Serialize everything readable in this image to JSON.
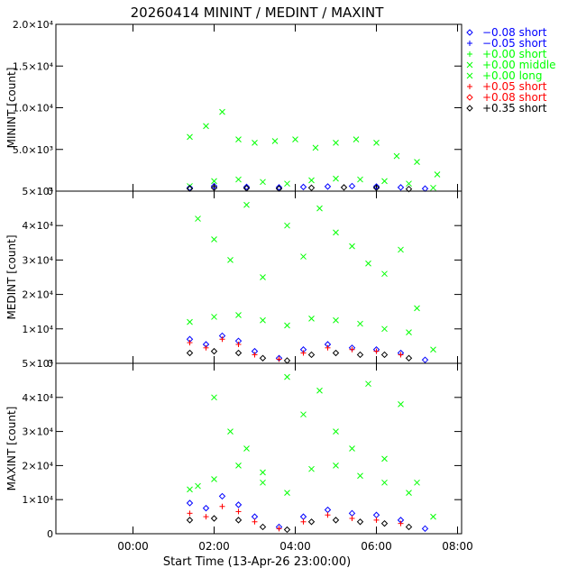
{
  "chart_data": {
    "type": "scatter",
    "title": "20260414 MININT / MEDINT / MAXINT",
    "xlabel": "Start Time (13-Apr-26 23:00:00)",
    "x_unit": "hours since 13-Apr-26 23:00:00",
    "xlim": [
      -0.9,
      9.1
    ],
    "x_ticks": [
      {
        "value": 1,
        "label": "00:00"
      },
      {
        "value": 3,
        "label": "02:00"
      },
      {
        "value": 5,
        "label": "04:00"
      },
      {
        "value": 7,
        "label": "06:00"
      },
      {
        "value": 9,
        "label": "08:00"
      }
    ],
    "legend_position": "right",
    "legend": [
      {
        "label": "−0.08 short",
        "marker": "diamond",
        "color": "#0000ff"
      },
      {
        "label": "−0.05 short",
        "marker": "plus",
        "color": "#0000ff"
      },
      {
        "label": "+0.00 short",
        "marker": "plus",
        "color": "#00ff00"
      },
      {
        "label": "+0.00 middle",
        "marker": "x",
        "color": "#00ff00"
      },
      {
        "label": "+0.00 long",
        "marker": "x",
        "color": "#00ff00"
      },
      {
        "label": "+0.05 short",
        "marker": "plus",
        "color": "#ff0000"
      },
      {
        "label": "+0.08 short",
        "marker": "diamond",
        "color": "#ff0000"
      },
      {
        "label": "+0.35 short",
        "marker": "diamond",
        "color": "#000000"
      }
    ],
    "panels": [
      {
        "ylabel": "MININT [count]",
        "ylim": [
          0,
          20000
        ],
        "y_ticks": [
          {
            "value": 0,
            "label": "0"
          },
          {
            "value": 5000,
            "label": "5.0×10³"
          },
          {
            "value": 10000,
            "label": "1.0×10⁴"
          },
          {
            "value": 15000,
            "label": "1.5×10⁴"
          },
          {
            "value": 20000,
            "label": "2.0×10⁴"
          }
        ],
        "series": [
          {
            "name": "−0.08 short",
            "x": [
              2.4,
              3.0,
              3.8,
              4.6,
              5.2,
              5.8,
              6.4,
              7.0,
              7.6,
              8.2
            ],
            "y": [
              400,
              600,
              500,
              450,
              500,
              550,
              600,
              550,
              450,
              300
            ]
          },
          {
            "name": "+0.00 middle",
            "x": [
              2.4,
              2.8,
              3.2,
              3.6,
              4.0,
              4.5,
              5.0,
              5.5,
              6.0,
              6.5,
              7.0,
              7.5,
              8.0,
              8.5
            ],
            "y": [
              6500,
              7800,
              9500,
              6200,
              5800,
              6000,
              6200,
              5200,
              5800,
              6200,
              5800,
              4200,
              3500,
              2000
            ]
          },
          {
            "name": "+0.00 long",
            "x": [
              2.4,
              3.0,
              3.6,
              4.2,
              4.8,
              5.4,
              6.0,
              6.6,
              7.2,
              7.8,
              8.4
            ],
            "y": [
              600,
              1200,
              1400,
              1100,
              900,
              1300,
              1500,
              1400,
              1200,
              900,
              400
            ]
          },
          {
            "name": "+0.35 short",
            "x": [
              2.4,
              3.0,
              3.8,
              4.6,
              5.4,
              6.2,
              7.0,
              7.8
            ],
            "y": [
              300,
              400,
              350,
              300,
              400,
              450,
              400,
              250
            ]
          }
        ]
      },
      {
        "ylabel": "MEDINT [count]",
        "ylim": [
          0,
          50000
        ],
        "y_ticks": [
          {
            "value": 0,
            "label": "0"
          },
          {
            "value": 10000,
            "label": "1×10⁴"
          },
          {
            "value": 20000,
            "label": "2×10⁴"
          },
          {
            "value": 30000,
            "label": "3×10⁴"
          },
          {
            "value": 40000,
            "label": "4×10⁴"
          },
          {
            "value": 50000,
            "label": "5×10⁴"
          }
        ],
        "series": [
          {
            "name": "−0.08 short",
            "x": [
              2.4,
              2.8,
              3.2,
              3.6,
              4.0,
              4.6,
              5.2,
              5.8,
              6.4,
              7.0,
              7.6,
              8.2
            ],
            "y": [
              7000,
              5500,
              8000,
              6500,
              3500,
              1500,
              4000,
              5500,
              4500,
              4000,
              3000,
              1000
            ]
          },
          {
            "name": "+0.00 middle",
            "x": [
              2.6,
              3.0,
              3.4,
              3.8,
              4.2,
              4.8,
              5.2,
              5.6,
              6.0,
              6.4,
              6.8,
              7.2,
              7.6,
              8.0
            ],
            "y": [
              42000,
              36000,
              30000,
              46000,
              25000,
              40000,
              31000,
              45000,
              38000,
              34000,
              29000,
              26000,
              33000,
              16000
            ]
          },
          {
            "name": "+0.00 long",
            "x": [
              2.4,
              3.0,
              3.6,
              4.2,
              4.8,
              5.4,
              6.0,
              6.6,
              7.2,
              7.8,
              8.4
            ],
            "y": [
              12000,
              13500,
              14000,
              12500,
              11000,
              13000,
              12500,
              11500,
              10000,
              9000,
              4000
            ]
          },
          {
            "name": "+0.05 short",
            "x": [
              2.4,
              2.8,
              3.2,
              3.6,
              4.0,
              4.6,
              5.2,
              5.8,
              6.4,
              7.0,
              7.6
            ],
            "y": [
              6000,
              4500,
              7000,
              5500,
              2500,
              1200,
              3000,
              4500,
              4000,
              3500,
              2500
            ]
          },
          {
            "name": "+0.35 short",
            "x": [
              2.4,
              3.0,
              3.6,
              4.2,
              4.8,
              5.4,
              6.0,
              6.6,
              7.2,
              7.8
            ],
            "y": [
              3000,
              3500,
              3000,
              1500,
              800,
              2500,
              3000,
              2500,
              2500,
              1500
            ]
          }
        ]
      },
      {
        "ylabel": "MAXINT [count]",
        "ylim": [
          0,
          50000
        ],
        "y_ticks": [
          {
            "value": 0,
            "label": "0"
          },
          {
            "value": 10000,
            "label": "1×10⁴"
          },
          {
            "value": 20000,
            "label": "2×10⁴"
          },
          {
            "value": 30000,
            "label": "3×10⁴"
          },
          {
            "value": 40000,
            "label": "4×10⁴"
          },
          {
            "value": 50000,
            "label": "5×10⁴"
          }
        ],
        "series": [
          {
            "name": "−0.08 short",
            "x": [
              2.4,
              2.8,
              3.2,
              3.6,
              4.0,
              4.6,
              5.2,
              5.8,
              6.4,
              7.0,
              7.6,
              8.2
            ],
            "y": [
              9000,
              7500,
              11000,
              8500,
              5000,
              2000,
              5000,
              7000,
              6000,
              5500,
              4000,
              1500
            ]
          },
          {
            "name": "+0.00 middle",
            "x": [
              2.6,
              3.0,
              3.4,
              3.8,
              4.2,
              4.8,
              5.2,
              5.6,
              6.0,
              6.4,
              6.8,
              7.2,
              7.6,
              8.0
            ],
            "y": [
              14000,
              40000,
              30000,
              25000,
              18000,
              46000,
              35000,
              42000,
              30000,
              25000,
              44000,
              22000,
              38000,
              15000
            ]
          },
          {
            "name": "+0.00 long",
            "x": [
              2.4,
              3.0,
              3.6,
              4.2,
              4.8,
              5.4,
              6.0,
              6.6,
              7.2,
              7.8,
              8.4
            ],
            "y": [
              13000,
              16000,
              20000,
              15000,
              12000,
              19000,
              20000,
              17000,
              15000,
              12000,
              5000
            ]
          },
          {
            "name": "+0.05 short",
            "x": [
              2.4,
              2.8,
              3.2,
              3.6,
              4.0,
              4.6,
              5.2,
              5.8,
              6.4,
              7.0,
              7.6
            ],
            "y": [
              6000,
              5000,
              8000,
              6500,
              3500,
              1500,
              3500,
              5500,
              4500,
              4000,
              3000
            ]
          },
          {
            "name": "+0.35 short",
            "x": [
              2.4,
              3.0,
              3.6,
              4.2,
              4.8,
              5.4,
              6.0,
              6.6,
              7.2,
              7.8
            ],
            "y": [
              4000,
              4500,
              4000,
              2000,
              1200,
              3500,
              4000,
              3500,
              3000,
              2000
            ]
          }
        ]
      }
    ]
  }
}
